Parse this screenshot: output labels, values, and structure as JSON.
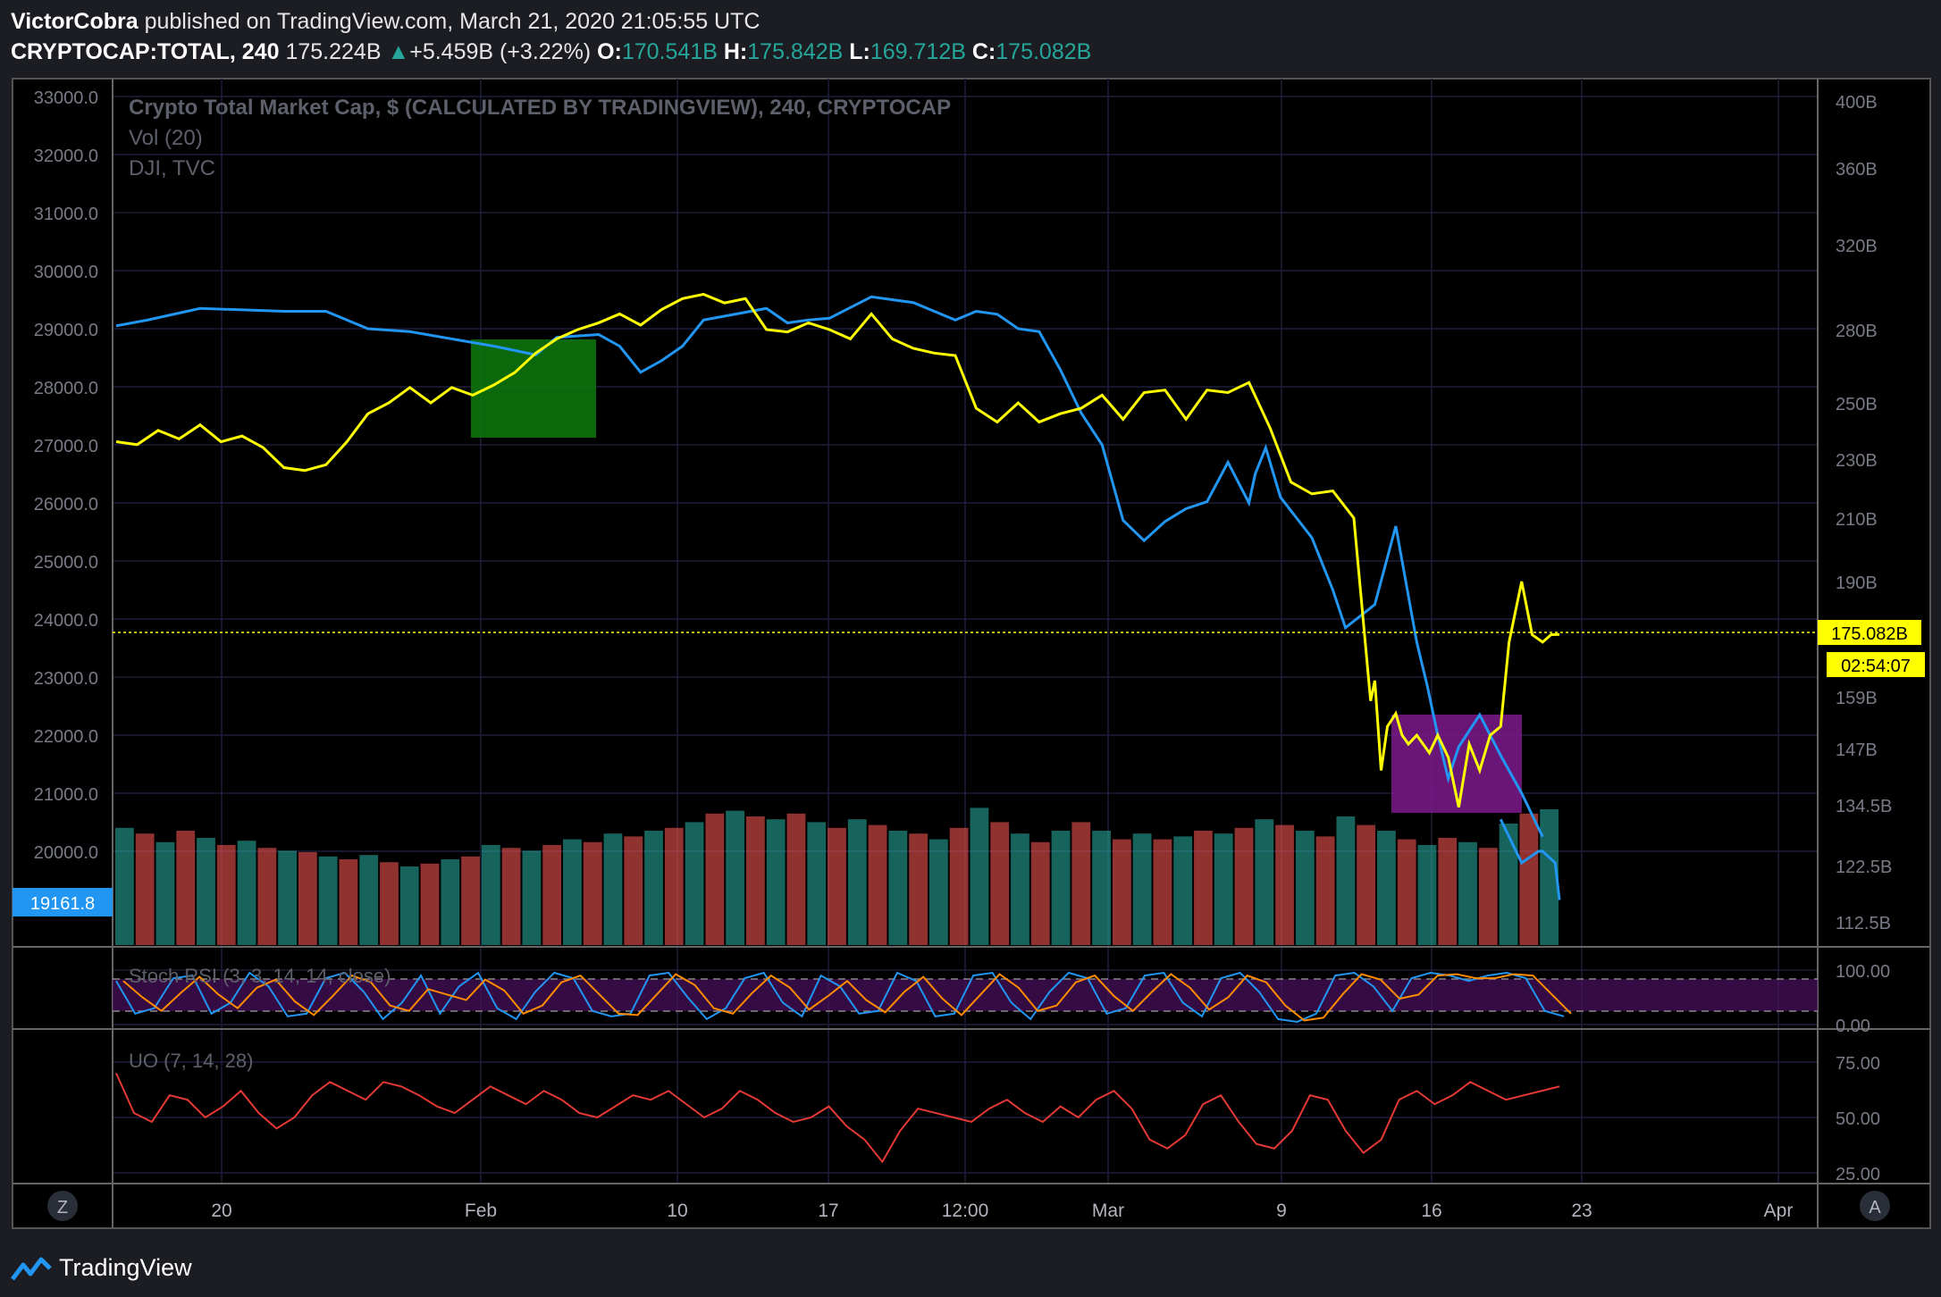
{
  "header": {
    "author": "VictorCobra",
    "published": "published on TradingView.com, March 21, 2020 21:05:55 UTC",
    "symbol": "CRYPTOCAP:TOTAL, 240",
    "last": "175.224B",
    "change_arrow": "▲",
    "change": "+5.459B (+3.22%)",
    "o_label": "O:",
    "o": "170.541B",
    "h_label": "H:",
    "h": "175.842B",
    "l_label": "L:",
    "l": "169.712B",
    "c_label": "C:",
    "c": "175.082B"
  },
  "legend": {
    "main": "Crypto Total Market Cap, $ (CALCULATED BY TRADINGVIEW), 240, CRYPTOCAP",
    "vol": "Vol (20)",
    "dji": "DJI, TVC",
    "stoch": "Stoch RSI (3, 3, 14, 14, close)",
    "uo": "UO (7, 14, 28)"
  },
  "price_tag": {
    "value": "175.082B",
    "countdown": "02:54:07"
  },
  "dji_tag": {
    "value": "19161.8"
  },
  "footer": {
    "brand": "TradingView",
    "left_btn": "Z",
    "right_btn": "A"
  },
  "colors": {
    "crypto": "#ffff00",
    "dji": "#2196f3",
    "uo": "#e53935",
    "stoch_k": "#2196f3",
    "stoch_d": "#ff8c00",
    "vol_up": "#26a69a",
    "vol_down": "#ef5350",
    "green_box": "#0d7a0d",
    "purple_box": "#7b1a8c",
    "background": "#000000"
  },
  "chart_data": {
    "type": "line",
    "title": "Crypto Total Market Cap, $ (CALCULATED BY TRADINGVIEW), 240, CRYPTOCAP",
    "x_ticks": [
      "20",
      "Feb",
      "10",
      "17",
      "12:00",
      "Mar",
      "9",
      "16",
      "23",
      "Apr"
    ],
    "right_axis_ticks": [
      "400B",
      "360B",
      "320B",
      "280B",
      "250B",
      "230B",
      "210B",
      "190B",
      "159B",
      "147B",
      "134.5B",
      "122.5B",
      "112.5B"
    ],
    "left_axis_ticks": [
      "33000.0",
      "32000.0",
      "31000.0",
      "30000.0",
      "29000.0",
      "28000.0",
      "27000.0",
      "26000.0",
      "25000.0",
      "24000.0",
      "23000.0",
      "22000.0",
      "21000.0",
      "20000.0"
    ],
    "stoch_ticks": [
      "100.00",
      "0.00"
    ],
    "uo_ticks": [
      "75.00",
      "50.00",
      "25.00"
    ],
    "dji_series": {
      "name": "DJI, TVC",
      "x": [
        0,
        1.5,
        4,
        8,
        10,
        12,
        14,
        18,
        20,
        21,
        23,
        24,
        25,
        26,
        27,
        28,
        31,
        32,
        33,
        34,
        36,
        38,
        39,
        40,
        41,
        42,
        43,
        44,
        45,
        46,
        47,
        48,
        49,
        50,
        51,
        52,
        53,
        54,
        54.3,
        54.8,
        55.5,
        57,
        58,
        58.6,
        60,
        61,
        62,
        62.5,
        63,
        63.5,
        64,
        65,
        66,
        67,
        68
      ],
      "values": [
        29050,
        29150,
        29350,
        29300,
        29300,
        29000,
        28950,
        28700,
        28550,
        28850,
        28900,
        28700,
        28250,
        28450,
        28700,
        29150,
        29350,
        29100,
        29150,
        29180,
        29550,
        29450,
        29300,
        29150,
        29300,
        29250,
        29000,
        28950,
        28300,
        27550,
        27000,
        25700,
        25350,
        25680,
        25900,
        26020,
        26700,
        26000,
        26500,
        26950,
        26100,
        25400,
        24500,
        23850,
        24250,
        25600,
        23600,
        22850,
        22000,
        21250,
        21800,
        22350,
        21650,
        21000,
        20250
      ],
      "tail_x": [
        66,
        67,
        67.8,
        68,
        68.6,
        68.8
      ],
      "tail_values": [
        20550,
        19800,
        20000,
        20000,
        19800,
        19161.8
      ]
    },
    "crypto_series": {
      "name": "Crypto Total Market Cap",
      "x": [
        0,
        1,
        2,
        3,
        4,
        5,
        6,
        7,
        8,
        9,
        10,
        11,
        12,
        13,
        14,
        15,
        16,
        17,
        18,
        19,
        20,
        21,
        22,
        23,
        24,
        25,
        26,
        27,
        28,
        29,
        30,
        31,
        32,
        33,
        34,
        35,
        36,
        37,
        38,
        39,
        40,
        41,
        42,
        43,
        44,
        45,
        46,
        47,
        48,
        49,
        50,
        51,
        52,
        53,
        54,
        55,
        56,
        57,
        58,
        59,
        59.8,
        60,
        60.3,
        60.6,
        61,
        61.3,
        61.6,
        62,
        62.6,
        63,
        63.5,
        64,
        64.5,
        65,
        65.5,
        66,
        66.4,
        67,
        67.5,
        68,
        68.4,
        68.8
      ],
      "values": [
        236,
        235,
        240,
        237,
        242,
        236,
        238,
        234,
        227,
        226,
        228,
        236,
        246,
        250,
        256,
        250,
        256,
        253,
        257,
        262,
        270,
        276,
        280,
        283,
        287,
        282,
        289,
        294,
        296,
        292,
        294,
        280,
        279,
        283,
        280,
        276,
        287,
        276,
        272,
        270,
        269,
        248,
        243,
        250,
        243,
        246,
        248,
        253,
        244,
        254,
        255,
        244,
        255,
        254,
        258,
        241,
        222,
        218,
        219,
        210,
        158,
        163,
        142,
        152,
        155,
        150,
        148,
        150,
        146,
        150,
        145,
        134,
        148,
        142,
        150,
        152,
        173,
        190,
        175,
        173,
        175,
        175.082
      ]
    },
    "volume_heights": [
      0.82,
      0.78,
      0.72,
      0.8,
      0.75,
      0.7,
      0.73,
      0.68,
      0.66,
      0.65,
      0.62,
      0.6,
      0.63,
      0.58,
      0.55,
      0.57,
      0.6,
      0.62,
      0.7,
      0.68,
      0.66,
      0.7,
      0.74,
      0.72,
      0.78,
      0.76,
      0.8,
      0.82,
      0.86,
      0.92,
      0.94,
      0.9,
      0.88,
      0.92,
      0.86,
      0.82,
      0.88,
      0.84,
      0.8,
      0.78,
      0.74,
      0.82,
      0.96,
      0.86,
      0.78,
      0.72,
      0.8,
      0.86,
      0.8,
      0.74,
      0.78,
      0.74,
      0.76,
      0.8,
      0.78,
      0.82,
      0.88,
      0.84,
      0.8,
      0.76,
      0.9,
      0.84,
      0.8,
      0.74,
      0.7,
      0.75,
      0.72,
      0.68,
      0.85,
      0.92,
      0.95
    ],
    "stoch_rsi_values": [
      80,
      20,
      30,
      85,
      90,
      20,
      40,
      95,
      70,
      15,
      20,
      85,
      95,
      60,
      10,
      40,
      90,
      20,
      70,
      95,
      30,
      10,
      60,
      95,
      85,
      25,
      15,
      20,
      90,
      95,
      50,
      10,
      30,
      85,
      95,
      40,
      15,
      90,
      70,
      20,
      25,
      95,
      80,
      15,
      20,
      90,
      95,
      40,
      10,
      60,
      95,
      85,
      20,
      30,
      90,
      95,
      40,
      15,
      85,
      95,
      60,
      10,
      5,
      20,
      90,
      95,
      70,
      25,
      85,
      95,
      90,
      80,
      90,
      95,
      85,
      25,
      15
    ],
    "uo_values": [
      70,
      52,
      48,
      60,
      58,
      50,
      55,
      62,
      52,
      45,
      50,
      60,
      66,
      62,
      58,
      66,
      64,
      60,
      55,
      52,
      58,
      64,
      60,
      56,
      62,
      58,
      52,
      50,
      55,
      60,
      58,
      62,
      56,
      50,
      54,
      62,
      58,
      52,
      48,
      50,
      55,
      46,
      40,
      30,
      44,
      54,
      52,
      50,
      48,
      54,
      58,
      52,
      48,
      55,
      50,
      58,
      62,
      54,
      40,
      36,
      42,
      56,
      60,
      48,
      38,
      36,
      44,
      60,
      58,
      44,
      34,
      40,
      58,
      62,
      56,
      60,
      66,
      62,
      58,
      60,
      62,
      64
    ]
  }
}
